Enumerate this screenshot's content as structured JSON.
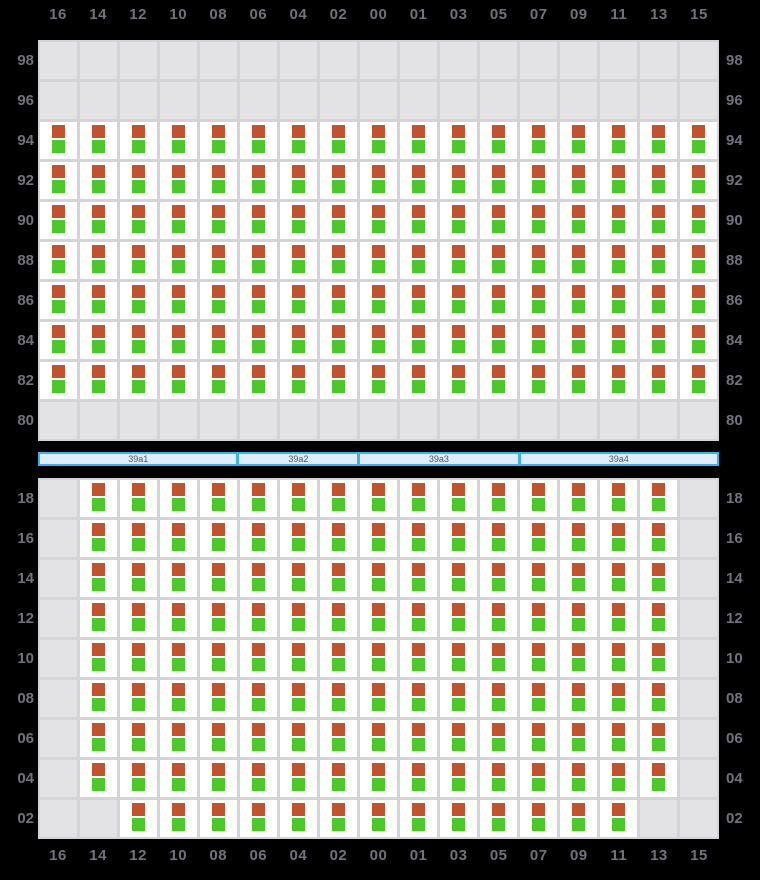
{
  "columns": [
    "16",
    "14",
    "12",
    "10",
    "08",
    "06",
    "04",
    "02",
    "00",
    "01",
    "03",
    "05",
    "07",
    "09",
    "11",
    "13",
    "15"
  ],
  "deck_section": {
    "rows": [
      {
        "label": "98",
        "range": null
      },
      {
        "label": "96",
        "range": null
      },
      {
        "label": "94",
        "range": [
          0,
          16
        ]
      },
      {
        "label": "92",
        "range": [
          0,
          16
        ]
      },
      {
        "label": "90",
        "range": [
          0,
          16
        ]
      },
      {
        "label": "88",
        "range": [
          0,
          16
        ]
      },
      {
        "label": "86",
        "range": [
          0,
          16
        ]
      },
      {
        "label": "84",
        "range": [
          0,
          16
        ]
      },
      {
        "label": "82",
        "range": [
          0,
          16
        ]
      },
      {
        "label": "80",
        "range": null
      }
    ]
  },
  "hatch_bar": {
    "segments": [
      {
        "label": "39a1",
        "span": 5
      },
      {
        "label": "39a2",
        "span": 3
      },
      {
        "label": "39a3",
        "span": 4
      },
      {
        "label": "39a4",
        "span": 5
      }
    ]
  },
  "hold_section": {
    "rows": [
      {
        "label": "18",
        "range": [
          1,
          15
        ]
      },
      {
        "label": "16",
        "range": [
          1,
          15
        ]
      },
      {
        "label": "14",
        "range": [
          1,
          15
        ]
      },
      {
        "label": "12",
        "range": [
          1,
          15
        ]
      },
      {
        "label": "10",
        "range": [
          1,
          15
        ]
      },
      {
        "label": "08",
        "range": [
          1,
          15
        ]
      },
      {
        "label": "06",
        "range": [
          1,
          15
        ]
      },
      {
        "label": "04",
        "range": [
          1,
          15
        ]
      },
      {
        "label": "02",
        "range": [
          2,
          14
        ]
      }
    ]
  },
  "cell_markers": [
    {
      "name": "orange-marker",
      "color": "#c0522e"
    },
    {
      "name": "green-marker",
      "color": "#4dc82b"
    }
  ],
  "colors": {
    "background": "#000000",
    "grid_track": "#d4d4d8",
    "occupied_cell": "#ffffff",
    "empty_cell": "#e3e3e6",
    "axis_label": "#72727c",
    "bar_fill": "#ddeef8",
    "bar_border": "#3eb1ec",
    "bar_text": "#4b5560"
  }
}
